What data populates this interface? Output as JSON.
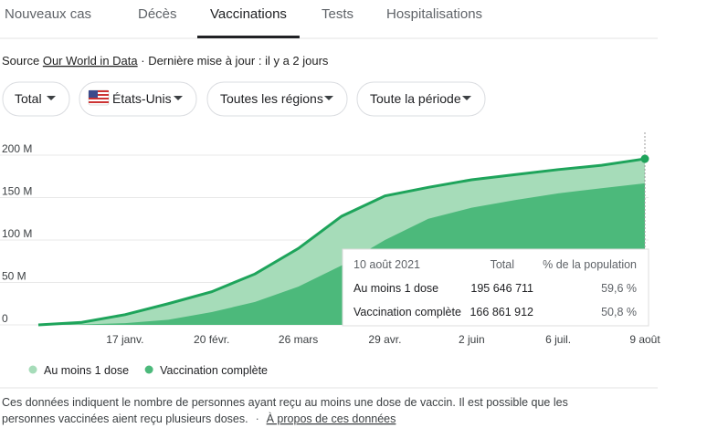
{
  "tabs": [
    "Nouveaux cas",
    "Décès",
    "Vaccinations",
    "Tests",
    "Hospitalisations"
  ],
  "active_tab": 2,
  "source": {
    "prefix": "Source",
    "link": "Our World in Data",
    "updated": "· Dernière mise à jour : il y a 2 jours"
  },
  "filters": [
    "Total",
    "États-Unis",
    "Toutes les régions",
    "Toute la période"
  ],
  "chart_data": {
    "type": "area",
    "categories": [
      null,
      null,
      "17 janv.",
      null,
      "20 févr.",
      null,
      "26 mars",
      null,
      "29 avr.",
      null,
      "2 juin",
      null,
      "6 juil.",
      null,
      "9 août"
    ],
    "series": [
      {
        "name": "Au moins 1 dose",
        "color": "#a6dcb9",
        "line_color": "#1ea45b",
        "values": [
          0,
          3,
          12,
          25,
          39,
          60,
          90,
          128,
          152,
          162,
          171,
          177,
          183,
          188,
          195.646711
        ]
      },
      {
        "name": "Vaccination complète",
        "color": "#4cb97b",
        "values": [
          0,
          0.5,
          2,
          6,
          15,
          27,
          45,
          70,
          100,
          125,
          138,
          147,
          155,
          161,
          166.861912
        ]
      }
    ],
    "ylim": [
      0,
      200
    ],
    "yticks": [
      {
        "value": 0,
        "label": "0"
      },
      {
        "value": 50,
        "label": "50 M"
      },
      {
        "value": 100,
        "label": "100 M"
      },
      {
        "value": 150,
        "label": "150 M"
      },
      {
        "value": 200,
        "label": "200 M"
      }
    ],
    "grid": true,
    "tooltip": {
      "date": "10 août 2021",
      "headers": [
        "Total",
        "% de la population"
      ],
      "rows": [
        [
          "Au moins 1 dose",
          "195 646 711",
          "59,6 %"
        ],
        [
          "Vaccination complète",
          "166 861 912",
          "50,8 %"
        ]
      ]
    }
  },
  "footer": {
    "lines": [
      "Ces données indiquent le nombre de personnes ayant reçu au moins une dose de vaccin. Il est possible que les",
      "personnes vaccinées aient reçu plusieurs doses."
    ],
    "separator": "·",
    "link": "À propos de ces données"
  }
}
